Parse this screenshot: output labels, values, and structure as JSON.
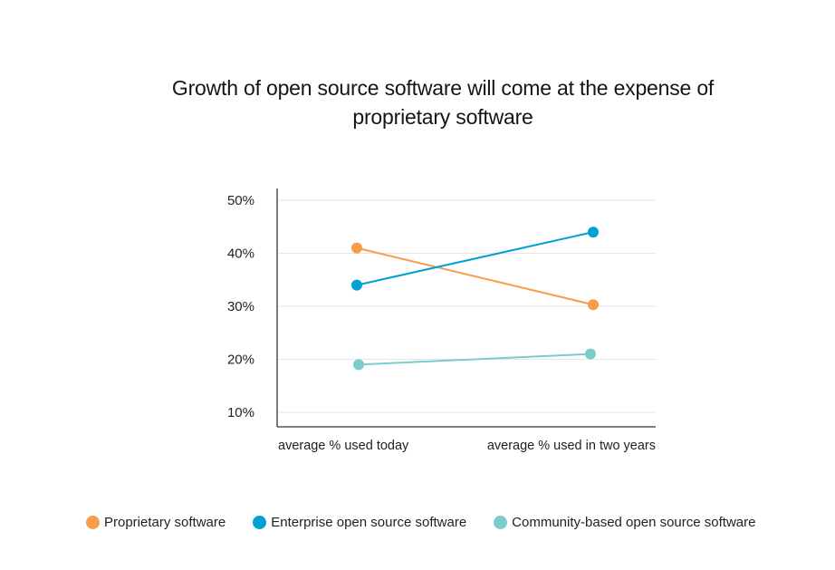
{
  "chart_data": {
    "type": "line",
    "title": "Growth of open source software will come at the expense of proprietary software",
    "title_lines": [
      "Growth of open source software will come at the expense of",
      "proprietary software"
    ],
    "categories": [
      "average % used today",
      "average % used in two years"
    ],
    "xlabel": "",
    "ylabel": "",
    "yticks": [
      50,
      40,
      30,
      20,
      10
    ],
    "ytick_labels": [
      "50%",
      "40%",
      "30%",
      "20%",
      "10%"
    ],
    "ylim": [
      7,
      52
    ],
    "grid": true,
    "legend_position": "bottom",
    "series": [
      {
        "name": "Proprietary software",
        "color": "#f79c47",
        "values": [
          41,
          30.3
        ]
      },
      {
        "name": "Enterprise open source software",
        "color": "#00a0d2",
        "values": [
          34,
          44
        ]
      },
      {
        "name": "Community-based open source software",
        "color": "#7ccccb",
        "values": [
          19,
          21
        ]
      }
    ]
  }
}
